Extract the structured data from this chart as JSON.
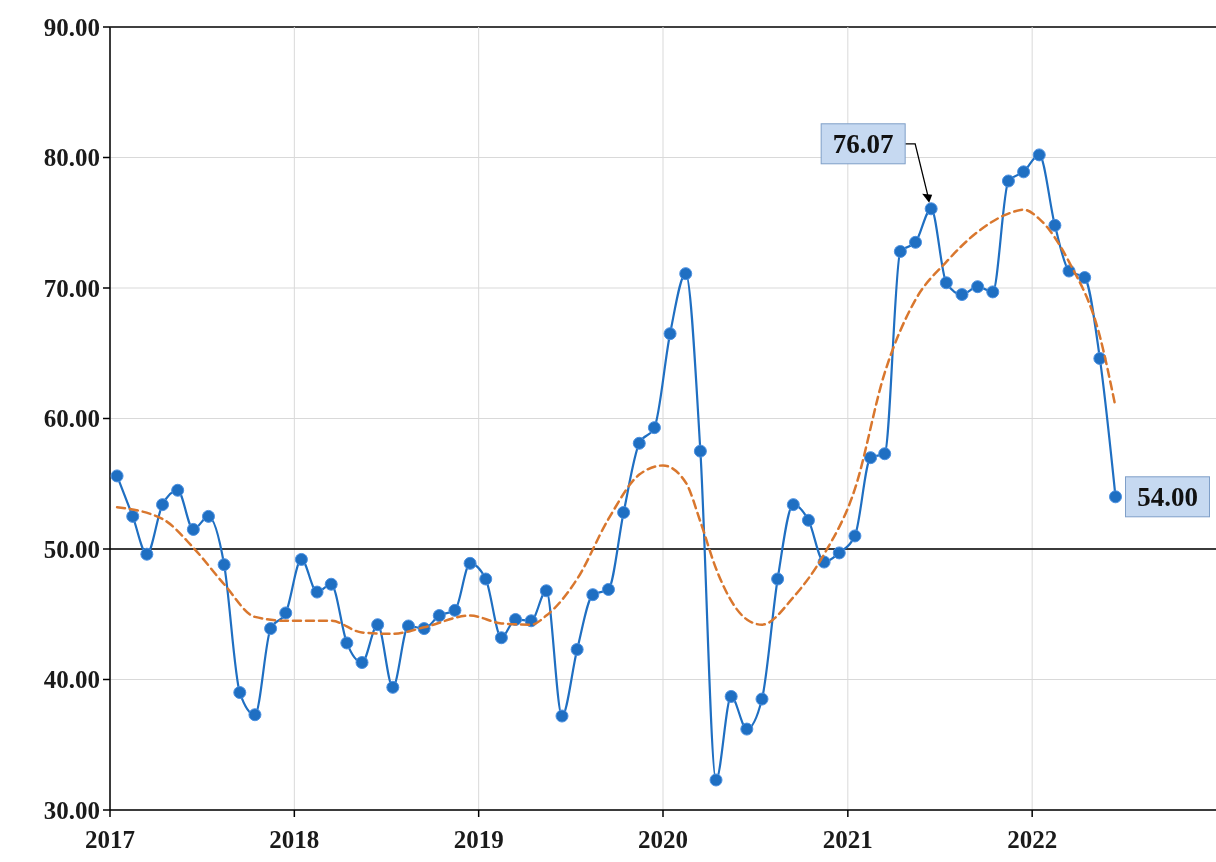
{
  "chart_data": {
    "type": "line",
    "x": [
      "2017-01-15",
      "2017-02-15",
      "2017-03-15",
      "2017-04-15",
      "2017-05-15",
      "2017-06-15",
      "2017-07-15",
      "2017-08-15",
      "2017-09-15",
      "2017-10-15",
      "2017-11-15",
      "2017-12-15",
      "2018-01-15",
      "2018-02-15",
      "2018-03-15",
      "2018-04-15",
      "2018-05-15",
      "2018-06-15",
      "2018-07-15",
      "2018-08-15",
      "2018-09-15",
      "2018-10-15",
      "2018-11-15",
      "2018-12-15",
      "2019-01-15",
      "2019-02-15",
      "2019-03-15",
      "2019-04-15",
      "2019-05-15",
      "2019-06-15",
      "2019-07-15",
      "2019-08-15",
      "2019-09-15",
      "2019-10-15",
      "2019-11-15",
      "2019-12-15",
      "2020-01-15",
      "2020-02-15",
      "2020-03-15",
      "2020-04-15",
      "2020-05-15",
      "2020-06-15",
      "2020-07-15",
      "2020-08-15",
      "2020-09-15",
      "2020-10-15",
      "2020-11-15",
      "2020-12-15",
      "2021-01-15",
      "2021-02-15",
      "2021-03-15",
      "2021-04-15",
      "2021-05-15",
      "2021-06-15",
      "2021-07-15",
      "2021-08-15",
      "2021-09-15",
      "2021-10-15",
      "2021-11-15",
      "2021-12-15",
      "2022-01-15",
      "2022-02-15",
      "2022-03-15",
      "2022-04-15",
      "2022-05-15",
      "2022-06-15"
    ],
    "series": [
      {
        "color": "#1f6fc2",
        "marker": "circle",
        "line_style": "solid",
        "values": [
          55.6,
          52.5,
          49.6,
          53.4,
          54.5,
          51.5,
          52.5,
          48.8,
          39.0,
          37.3,
          43.9,
          45.1,
          49.2,
          46.7,
          47.3,
          42.8,
          41.3,
          44.2,
          39.4,
          44.1,
          43.9,
          44.9,
          45.3,
          48.9,
          47.7,
          43.2,
          44.6,
          44.5,
          46.8,
          37.2,
          42.3,
          46.5,
          46.9,
          52.8,
          58.1,
          59.3,
          66.5,
          71.1,
          57.5,
          32.3,
          38.7,
          36.2,
          38.5,
          47.7,
          53.4,
          52.2,
          49.0,
          49.7,
          51.0,
          57.0,
          57.3,
          72.8,
          73.5,
          76.07,
          70.4,
          69.5,
          70.1,
          69.7,
          78.2,
          78.9,
          80.2,
          74.8,
          71.3,
          70.8,
          64.6,
          54.0
        ]
      },
      {
        "type": "line",
        "color": "#d9772e",
        "marker": "none",
        "line_style": "dashed",
        "x": [
          "2017-01-15",
          "2017-04-15",
          "2017-06-15",
          "2017-08-15",
          "2017-10-15",
          "2017-12-15",
          "2018-03-15",
          "2018-05-15",
          "2018-07-15",
          "2018-09-15",
          "2018-12-15",
          "2019-02-15",
          "2019-04-15",
          "2019-05-15",
          "2019-07-15",
          "2019-09-15",
          "2019-11-15",
          "2020-01-01",
          "2020-02-15",
          "2020-03-15",
          "2020-04-15",
          "2020-06-15",
          "2020-07-15",
          "2020-09-15",
          "2020-11-15",
          "2021-01-15",
          "2021-03-15",
          "2021-05-15",
          "2021-07-15",
          "2021-09-15",
          "2021-11-15",
          "2021-12-15",
          "2022-01-15",
          "2022-03-15",
          "2022-05-15",
          "2022-06-15"
        ],
        "values": [
          53.2,
          52.3,
          50.1,
          47.3,
          44.8,
          44.5,
          44.5,
          43.6,
          43.5,
          44.0,
          44.9,
          44.3,
          44.2,
          44.9,
          47.7,
          52.3,
          55.7,
          56.4,
          55.1,
          52.1,
          48.5,
          44.6,
          44.2,
          46.3,
          49.6,
          54.6,
          63.5,
          69.1,
          72.0,
          74.3,
          75.7,
          76.0,
          75.3,
          72.0,
          66.3,
          60.9
        ]
      }
    ],
    "xlim": [
      "2017-01-01",
      "2022-12-31"
    ],
    "xticks": [
      {
        "value": "2017-01-01",
        "label": "2017"
      },
      {
        "value": "2018-01-01",
        "label": "2018"
      },
      {
        "value": "2019-01-01",
        "label": "2019"
      },
      {
        "value": "2020-01-01",
        "label": "2020"
      },
      {
        "value": "2021-01-01",
        "label": "2021"
      },
      {
        "value": "2022-01-01",
        "label": "2022"
      }
    ],
    "ylim": [
      30,
      90
    ],
    "yticks": [
      {
        "value": 30,
        "label": "30.00"
      },
      {
        "value": 40,
        "label": "40.00"
      },
      {
        "value": 50,
        "label": "50.00"
      },
      {
        "value": 60,
        "label": "60.00"
      },
      {
        "value": 70,
        "label": "70.00"
      },
      {
        "value": 80,
        "label": "80.00"
      },
      {
        "value": 90,
        "label": "90.00"
      }
    ],
    "grid": true,
    "ref_lines": [
      {
        "axis": "y",
        "value": 50,
        "color": "#000000"
      }
    ],
    "annotations": [
      {
        "text": "76.07",
        "x": "2021-06-15",
        "y": 76.07
      },
      {
        "text": "54.00",
        "x": "2022-06-15",
        "y": 54.0
      }
    ]
  }
}
